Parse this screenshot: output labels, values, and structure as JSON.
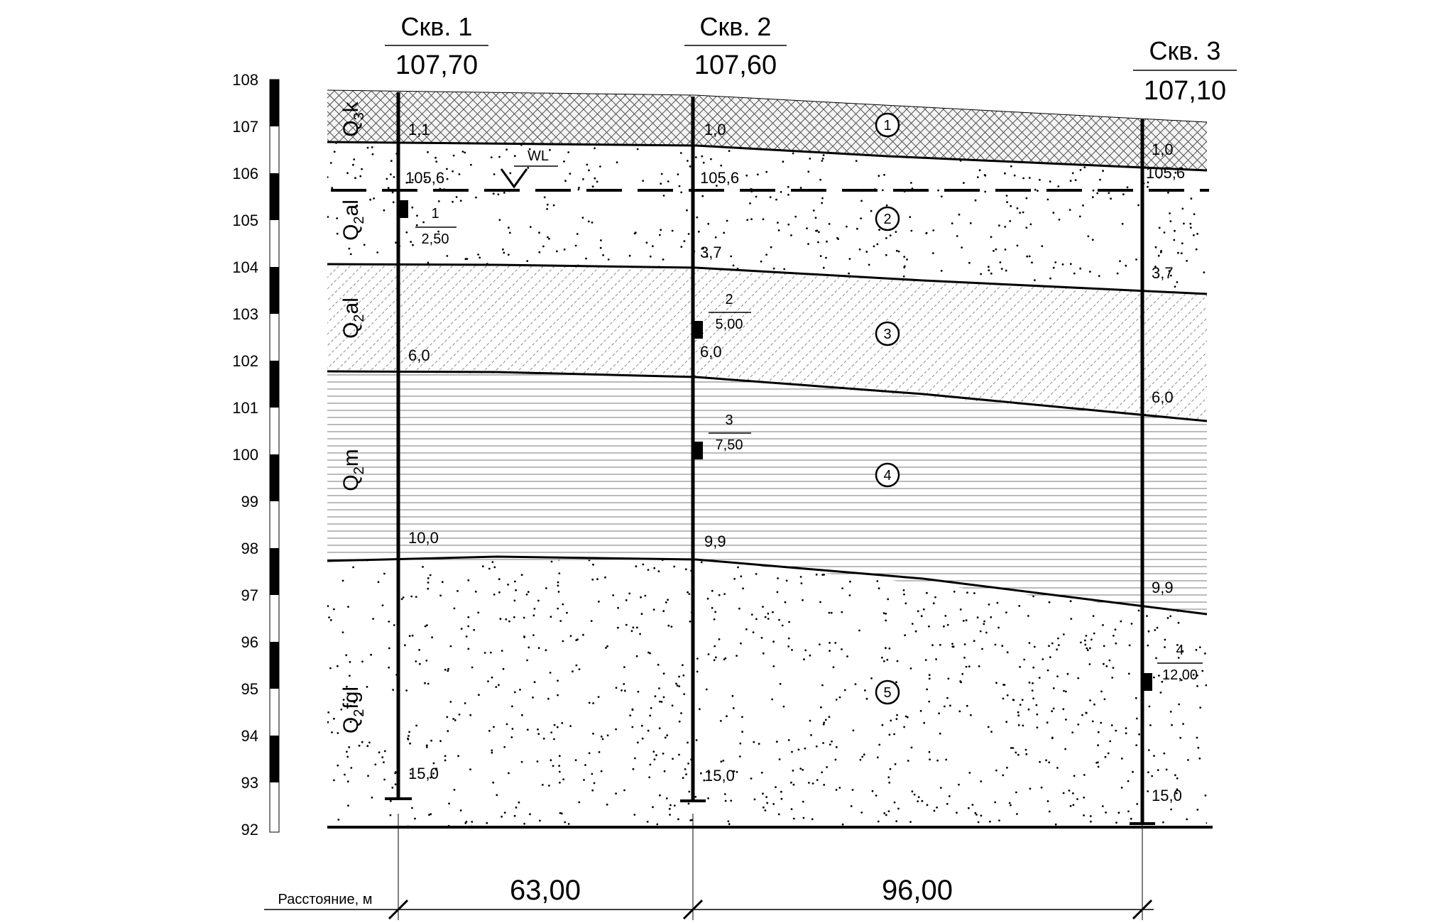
{
  "scale": {
    "labels": [
      "108",
      "107",
      "106",
      "105",
      "104",
      "103",
      "102",
      "101",
      "100",
      "99",
      "98",
      "97",
      "96",
      "95",
      "94",
      "93",
      "92"
    ]
  },
  "wells": [
    {
      "name": "Скв. 1",
      "elevation": "107,70"
    },
    {
      "name": "Скв. 2",
      "elevation": "107,60"
    },
    {
      "name": "Скв. 3",
      "elevation": "107,10"
    }
  ],
  "water_level": {
    "label": "WL"
  },
  "depth_labels": {
    "w1": [
      "1,1",
      "105,6",
      "6,0",
      "10,0",
      "15,0"
    ],
    "w2": [
      "1,0",
      "105,6",
      "3,7",
      "6,0",
      "9,9",
      "15,0"
    ],
    "w3": [
      "1,0",
      "105,6",
      "3,7",
      "6,0",
      "9,9",
      "15,0"
    ]
  },
  "samples": [
    {
      "num": "1",
      "depth": "2,50"
    },
    {
      "num": "2",
      "depth": "5,00"
    },
    {
      "num": "3",
      "depth": "7,50"
    },
    {
      "num": "4",
      "depth": "12,00"
    }
  ],
  "layers": [
    "1",
    "2",
    "3",
    "4",
    "5"
  ],
  "strata": [
    {
      "main": "Q",
      "sub": "3",
      "rest": "k"
    },
    {
      "main": "Q",
      "sub": "2",
      "rest": "al"
    },
    {
      "main": "Q",
      "sub": "2",
      "rest": "al"
    },
    {
      "main": "Q",
      "sub": "2",
      "rest": "m"
    },
    {
      "main": "Q",
      "sub": "2",
      "rest": "fgl"
    }
  ],
  "distances": {
    "caption": "Расстояние, м",
    "d12": "63,00",
    "d23": "96,00"
  }
}
